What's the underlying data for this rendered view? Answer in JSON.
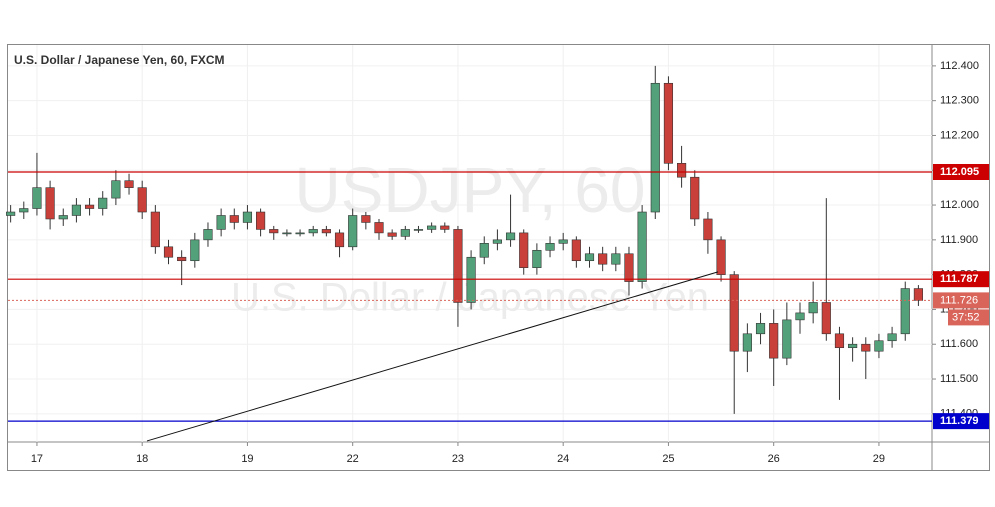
{
  "chart_data": {
    "type": "candlestick",
    "title": "U.S. Dollar / Japanese Yen, 60, FXCM",
    "watermark": "USDJPY, 60",
    "watermark_subtitle": "U.S. Dollar / Japanese Yen",
    "up_color": "#53a17a",
    "down_color": "#c9403a",
    "x": [
      -6,
      -3,
      0,
      3,
      6,
      9,
      12,
      15,
      18,
      21,
      24,
      27,
      30,
      33,
      36,
      39,
      42,
      45,
      48,
      51,
      54,
      57,
      60,
      63,
      66,
      69,
      72,
      75,
      78,
      81,
      84,
      87,
      90,
      93,
      96,
      99,
      102,
      105,
      108,
      111,
      114,
      117,
      120,
      123,
      126,
      129,
      132,
      135,
      138,
      141,
      144,
      147,
      150,
      153,
      156,
      159,
      162,
      165,
      168,
      171,
      174,
      177,
      180,
      183,
      186,
      189,
      192,
      195,
      198,
      201
    ],
    "open": [
      111.97,
      111.98,
      111.99,
      112.05,
      111.96,
      111.97,
      112.0,
      111.99,
      112.02,
      112.07,
      112.05,
      111.98,
      111.88,
      111.85,
      111.84,
      111.9,
      111.93,
      111.97,
      111.95,
      111.98,
      111.93,
      111.92,
      111.92,
      111.92,
      111.93,
      111.92,
      111.88,
      111.97,
      111.95,
      111.92,
      111.91,
      111.93,
      111.93,
      111.94,
      111.93,
      111.72,
      111.85,
      111.89,
      111.9,
      111.92,
      111.82,
      111.87,
      111.89,
      111.9,
      111.84,
      111.86,
      111.83,
      111.86,
      111.78,
      111.98,
      112.35,
      112.12,
      112.08,
      111.96,
      111.9,
      111.8,
      111.58,
      111.63,
      111.66,
      111.56,
      111.67,
      111.69,
      111.72,
      111.63,
      111.59,
      111.6,
      111.58,
      111.61,
      111.63,
      111.76
    ],
    "high": [
      112.0,
      112.01,
      112.15,
      112.07,
      111.99,
      112.02,
      112.02,
      112.04,
      112.1,
      112.09,
      112.07,
      112.0,
      111.9,
      111.87,
      111.92,
      111.95,
      111.99,
      111.99,
      112.0,
      111.99,
      111.94,
      111.93,
      111.93,
      111.94,
      111.94,
      111.93,
      111.99,
      111.98,
      111.96,
      111.93,
      111.94,
      111.94,
      111.95,
      111.95,
      111.94,
      111.87,
      111.91,
      111.93,
      112.03,
      111.93,
      111.89,
      111.91,
      111.92,
      111.91,
      111.88,
      111.88,
      111.88,
      111.88,
      112.0,
      112.4,
      112.37,
      112.17,
      112.1,
      111.98,
      111.91,
      111.81,
      111.66,
      111.69,
      111.7,
      111.72,
      111.72,
      111.78,
      112.02,
      111.65,
      111.62,
      111.62,
      111.63,
      111.65,
      111.78,
      111.77
    ],
    "low": [
      111.95,
      111.96,
      111.97,
      111.93,
      111.94,
      111.95,
      111.97,
      111.97,
      112.0,
      112.03,
      111.96,
      111.86,
      111.83,
      111.77,
      111.82,
      111.88,
      111.91,
      111.93,
      111.93,
      111.91,
      111.9,
      111.91,
      111.91,
      111.91,
      111.91,
      111.85,
      111.87,
      111.93,
      111.9,
      111.9,
      111.9,
      111.92,
      111.92,
      111.92,
      111.65,
      111.7,
      111.83,
      111.87,
      111.88,
      111.8,
      111.8,
      111.85,
      111.87,
      111.82,
      111.82,
      111.81,
      111.81,
      111.74,
      111.76,
      111.96,
      112.1,
      112.05,
      111.94,
      111.86,
      111.78,
      111.4,
      111.52,
      111.6,
      111.48,
      111.54,
      111.63,
      111.66,
      111.61,
      111.44,
      111.55,
      111.5,
      111.56,
      111.59,
      111.61,
      111.71
    ],
    "close": [
      111.98,
      111.99,
      112.05,
      111.96,
      111.97,
      112.0,
      111.99,
      112.02,
      112.07,
      112.05,
      111.98,
      111.88,
      111.85,
      111.84,
      111.9,
      111.93,
      111.97,
      111.95,
      111.98,
      111.93,
      111.92,
      111.92,
      111.92,
      111.93,
      111.92,
      111.88,
      111.97,
      111.95,
      111.92,
      111.91,
      111.93,
      111.93,
      111.94,
      111.93,
      111.72,
      111.85,
      111.89,
      111.9,
      111.92,
      111.82,
      111.87,
      111.89,
      111.9,
      111.84,
      111.86,
      111.83,
      111.86,
      111.78,
      111.98,
      112.35,
      112.12,
      112.08,
      111.96,
      111.9,
      111.8,
      111.58,
      111.63,
      111.66,
      111.56,
      111.67,
      111.69,
      111.72,
      111.63,
      111.59,
      111.6,
      111.58,
      111.61,
      111.63,
      111.76,
      111.726
    ],
    "xlim": [
      -6.6,
      204.1
    ],
    "xticks": [
      {
        "value": 0,
        "label": "17"
      },
      {
        "value": 24,
        "label": "18"
      },
      {
        "value": 48,
        "label": "19"
      },
      {
        "value": 72,
        "label": "22"
      },
      {
        "value": 96,
        "label": "23"
      },
      {
        "value": 120,
        "label": "24"
      },
      {
        "value": 144,
        "label": "25"
      },
      {
        "value": 168,
        "label": "26"
      },
      {
        "value": 192,
        "label": "29"
      }
    ],
    "ylim": [
      111.319,
      112.46
    ],
    "yticks": [
      {
        "value": 111.4,
        "label": "111.400"
      },
      {
        "value": 111.5,
        "label": "111.500"
      },
      {
        "value": 111.6,
        "label": "111.600"
      },
      {
        "value": 111.7,
        "label": "111.700"
      },
      {
        "value": 111.8,
        "label": "111.800"
      },
      {
        "value": 111.9,
        "label": "111.900"
      },
      {
        "value": 112,
        "label": "112.000"
      },
      {
        "value": 112.1,
        "label": "112.100"
      },
      {
        "value": 112.2,
        "label": "112.200"
      },
      {
        "value": 112.3,
        "label": "112.300"
      },
      {
        "value": 112.4,
        "label": "112.400"
      }
    ],
    "grid": true,
    "levels": [
      {
        "value": 112.095,
        "color": "#cc0000"
      },
      {
        "value": 111.787,
        "color": "#cc0000"
      },
      {
        "value": 111.379,
        "color": "#0000cc"
      }
    ],
    "last_price": {
      "value": 111.726,
      "color": "#d96459",
      "countdown": "37:52"
    },
    "trendline": {
      "x": [
        25.1,
        155.3
      ],
      "y": [
        111.322,
        111.808
      ]
    }
  }
}
